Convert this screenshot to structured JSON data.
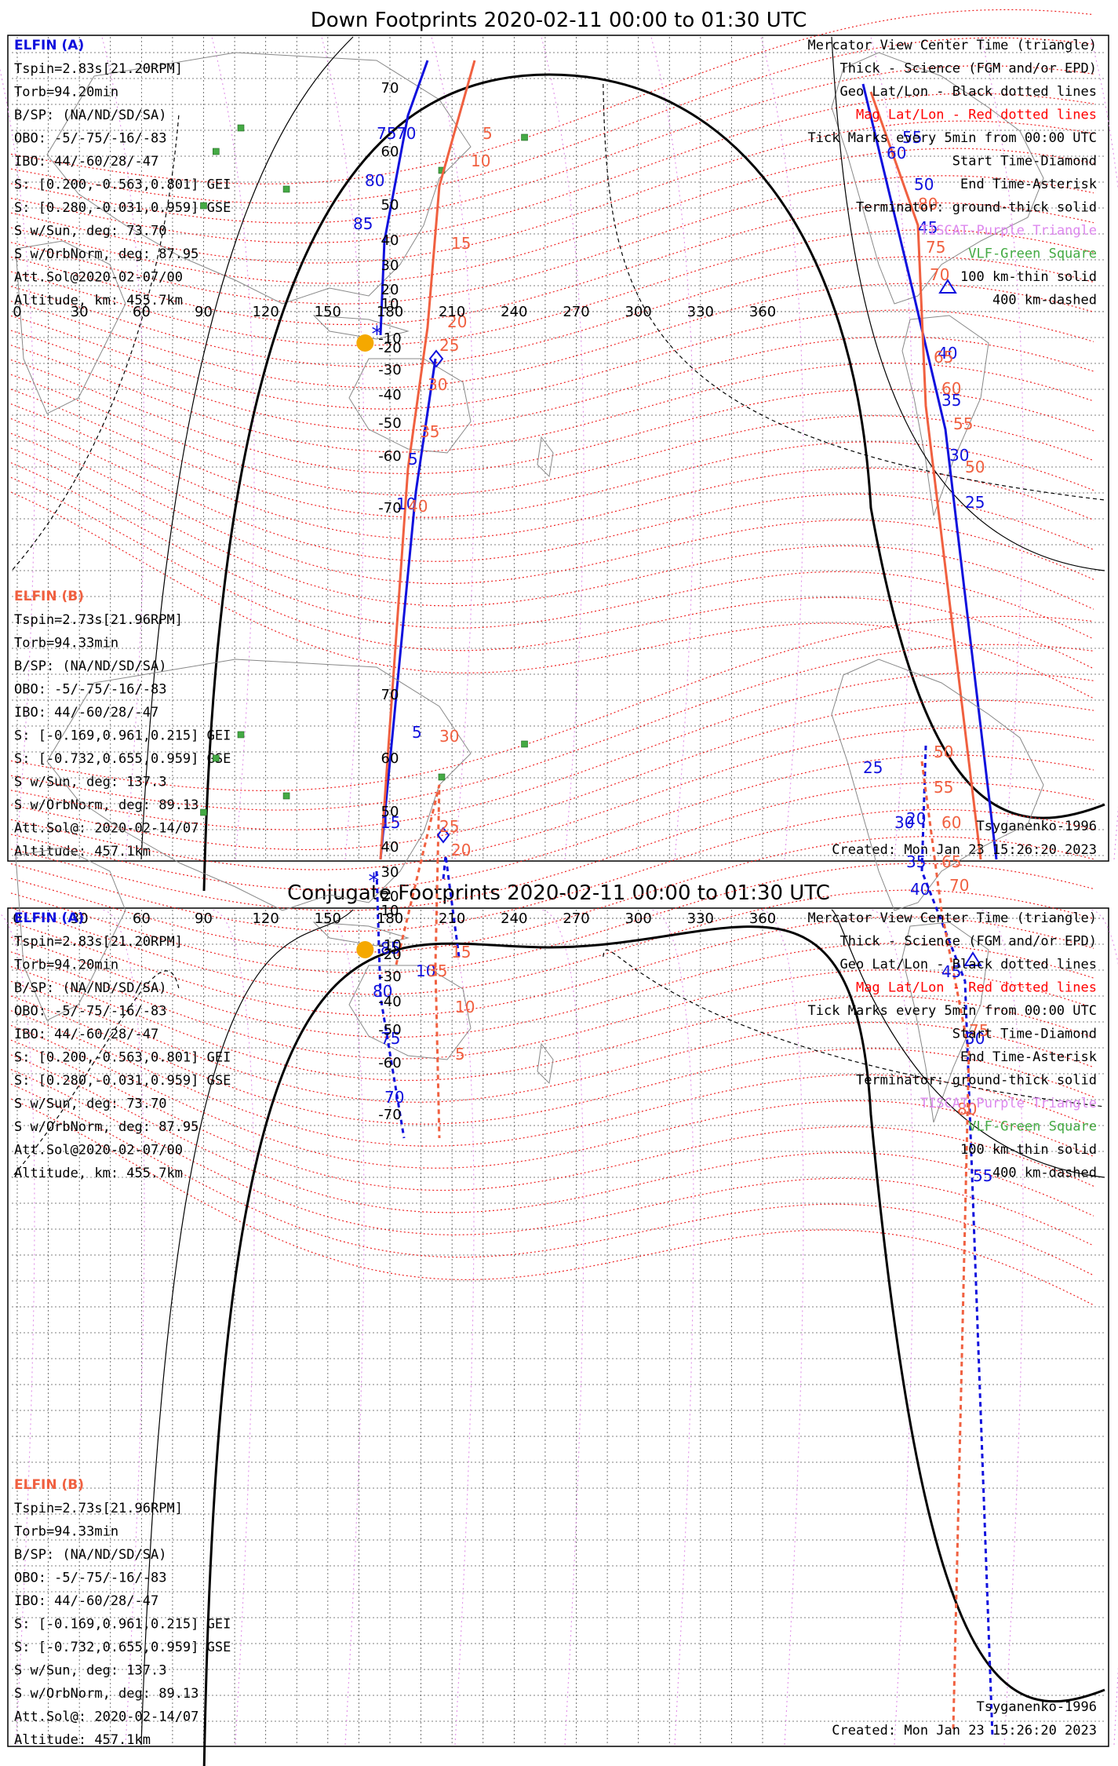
{
  "panels": [
    {
      "title": "Down Footprints 2020-02-11 00:00 to 01:30 UTC",
      "kind": "down",
      "elfin_a": {
        "label": "ELFIN (A)",
        "lines": [
          "Tspin=2.83s[21.20RPM]",
          "Torb=94.20min",
          "B/SP: (NA/ND/SD/SA)",
          "OBO: -5/-75/-16/-83",
          "IBO: 44/-60/28/-47",
          "S: [0.200,-0.563,0.801] GEI",
          "S: [0.280,-0.031,0.959] GSE",
          "S w/Sun, deg: 73.70",
          "S w/OrbNorm, deg: 87.95",
          "Att.Sol@2020-02-07/00",
          "Altitude, km: 455.7km"
        ]
      },
      "elfin_b": {
        "label": "ELFIN (B)",
        "lines": [
          "Tspin=2.73s[21.96RPM]",
          "Torb=94.33min",
          "B/SP: (NA/ND/SD/SA)",
          "OBO: -5/-75/-16/-83",
          "IBO: 44/-60/28/-47",
          "S: [-0.169,0.961,0.215] GEI",
          "S: [-0.732,0.655,0.959] GSE",
          "S w/Sun, deg: 137.3",
          "S w/OrbNorm, deg: 89.13",
          "Att.Sol@: 2020-02-14/07",
          "Altitude: 457.1km"
        ]
      },
      "legend": [
        {
          "text": "Mercator View Center Time (triangle)",
          "color": "#000000"
        },
        {
          "text": "Thick - Science (FGM and/or EPD)",
          "color": "#000000"
        },
        {
          "text": "Geo Lat/Lon - Black dotted lines",
          "color": "#000000"
        },
        {
          "text": "Mag Lat/Lon - Red dotted lines",
          "color": "#ff0000"
        },
        {
          "text": "Tick Marks every 5min from 00:00 UTC",
          "color": "#000000"
        },
        {
          "text": "Start Time-Diamond",
          "color": "#000000"
        },
        {
          "text": "End Time-Asterisk",
          "color": "#000000"
        },
        {
          "text": "Terminator: ground-thick solid",
          "color": "#000000"
        },
        {
          "text": "TISCAT-Purple Triangle",
          "color": "#dd88ee"
        },
        {
          "text": "VLF-Green Square",
          "color": "#44aa44"
        },
        {
          "text": "100 km-thin solid",
          "color": "#000000"
        },
        {
          "text": "400 km-dashed",
          "color": "#000000"
        }
      ],
      "model": "Tsyganenko-1996",
      "created": "Created: Mon Jan 23 15:26:20 2023",
      "lon_ticks": [
        "0",
        "30",
        "60",
        "90",
        "120",
        "150",
        "180",
        "210",
        "240",
        "270",
        "300",
        "330",
        "360"
      ],
      "lat_ticks": [
        "70",
        "60",
        "50",
        "40",
        "30",
        "20",
        "10",
        "-10",
        "-20",
        "-30",
        "-40",
        "-50",
        "-60",
        "-70"
      ],
      "track_a_labels": [
        "70",
        "75",
        "80",
        "85",
        "5",
        "10",
        "15",
        "60",
        "55",
        "50",
        "45",
        "40",
        "35",
        "30",
        "25"
      ],
      "track_b_labels": [
        "5",
        "10",
        "15",
        "20",
        "25",
        "30",
        "35",
        "40",
        "80",
        "75",
        "70",
        "65",
        "60",
        "55",
        "50"
      ]
    },
    {
      "title": "Conjugate Footprints 2020-02-11 00:00 to 01:30 UTC",
      "kind": "conj",
      "elfin_a": {
        "label": "ELFIN (A)",
        "lines": [
          "Tspin=2.83s[21.20RPM]",
          "Torb=94.20min",
          "B/SP: (NA/ND/SD/SA)",
          "OBO: -5/-75/-16/-83",
          "IBO: 44/-60/28/-47",
          "S: [0.200,-0.563,0.801] GEI",
          "S: [0.280,-0.031,0.959] GSE",
          "S w/Sun, deg: 73.70",
          "S w/OrbNorm, deg: 87.95",
          "Att.Sol@2020-02-07/00",
          "Altitude, km: 455.7km"
        ]
      },
      "elfin_b": {
        "label": "ELFIN (B)",
        "lines": [
          "Tspin=2.73s[21.96RPM]",
          "Torb=94.33min",
          "B/SP: (NA/ND/SD/SA)",
          "OBO: -5/-75/-16/-83",
          "IBO: 44/-60/28/-47",
          "S: [-0.169,0.961,0.215] GEI",
          "S: [-0.732,0.655,0.959] GSE",
          "S w/Sun, deg: 137.3",
          "S w/OrbNorm, deg: 89.13",
          "Att.Sol@: 2020-02-14/07",
          "Altitude: 457.1km"
        ]
      },
      "legend": [
        {
          "text": "Mercator View Center Time (triangle)",
          "color": "#000000"
        },
        {
          "text": "Thick - Science (FGM and/or EPD)",
          "color": "#000000"
        },
        {
          "text": "Geo Lat/Lon - Black dotted lines",
          "color": "#000000"
        },
        {
          "text": "Mag Lat/Lon - Red dotted lines",
          "color": "#ff0000"
        },
        {
          "text": "Tick Marks every 5min from 00:00 UTC",
          "color": "#000000"
        },
        {
          "text": "Start Time-Diamond",
          "color": "#000000"
        },
        {
          "text": "End Time-Asterisk",
          "color": "#000000"
        },
        {
          "text": "Terminator: ground-thick solid",
          "color": "#000000"
        },
        {
          "text": "TISCAT-Purple Triangle",
          "color": "#dd88ee"
        },
        {
          "text": "VLF-Green Square",
          "color": "#44aa44"
        },
        {
          "text": "100 km-thin solid",
          "color": "#000000"
        },
        {
          "text": "400 km-dashed",
          "color": "#000000"
        }
      ],
      "model": "Tsyganenko-1996",
      "created": "Created: Mon Jan 23 15:26:20 2023",
      "lon_ticks": [
        "0",
        "30",
        "60",
        "90",
        "120",
        "150",
        "180",
        "210",
        "240",
        "270",
        "300",
        "330",
        "360"
      ],
      "lat_ticks": [
        "70",
        "60",
        "50",
        "40",
        "30",
        "20",
        "10",
        "-10",
        "-20",
        "-30",
        "-40",
        "-50",
        "-60",
        "-70"
      ],
      "track_a_labels": [
        "10",
        "5",
        "85",
        "80",
        "75",
        "70",
        "20",
        "25",
        "30",
        "35",
        "40",
        "45",
        "50",
        "55"
      ],
      "track_b_labels": [
        "35",
        "30",
        "25",
        "20",
        "15",
        "10",
        "5",
        "50",
        "55",
        "60",
        "65",
        "70",
        "75",
        "80"
      ]
    }
  ],
  "colors": {
    "elfin_a": "#1010dd",
    "elfin_b": "#f06040",
    "mag_grid": "#ee2222",
    "geo_grid": "#555555",
    "vlf": "#44aa44",
    "tiscat": "#dd88ee",
    "sun": "#f5a800"
  }
}
